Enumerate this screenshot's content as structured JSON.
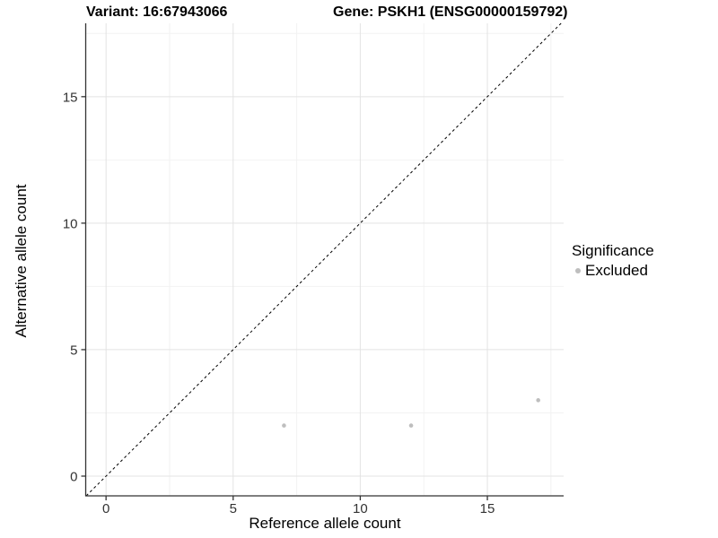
{
  "chart_data": {
    "type": "scatter",
    "title_left": "Variant: 16:67943066",
    "title_right": "Gene: PSKH1 (ENSG00000159792)",
    "xlabel": "Reference allele count",
    "ylabel": "Alternative allele count",
    "xlim": [
      -0.8,
      18.0
    ],
    "ylim": [
      -0.78,
      17.9
    ],
    "x_ticks": [
      0,
      5,
      10,
      15
    ],
    "y_ticks": [
      0,
      5,
      10,
      15
    ],
    "x_minor_gridlines": [
      2.5,
      7.5,
      12.5,
      17.5
    ],
    "y_minor_gridlines": [
      2.5,
      7.5,
      12.5,
      17.5
    ],
    "grid": true,
    "reference_line": {
      "type": "identity",
      "slope": 1,
      "intercept": 0,
      "style": "dashed",
      "color": "#000000"
    },
    "series": [
      {
        "name": "Excluded",
        "color": "#bebebe",
        "points": [
          {
            "x": 7,
            "y": 2
          },
          {
            "x": 12,
            "y": 2
          },
          {
            "x": 17,
            "y": 3
          }
        ]
      }
    ],
    "legend": {
      "title": "Significance",
      "position": "right",
      "items": [
        {
          "label": "Excluded",
          "color": "#bebebe"
        }
      ]
    }
  },
  "colors": {
    "background": "#ffffff",
    "grid_major": "#e3e3e3",
    "grid_minor": "#f2f2f2",
    "axis_line": "#333333",
    "tick_mark": "#333333",
    "tick_label": "#333333",
    "point": "#bebebe"
  }
}
